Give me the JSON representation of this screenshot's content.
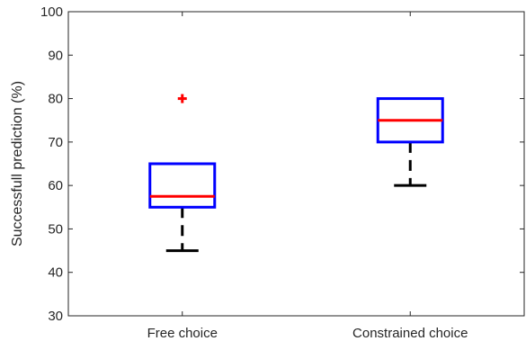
{
  "chart_data": {
    "type": "box",
    "ylabel": "Successfull prediction (%)",
    "xlabel": "",
    "ylim": [
      30,
      100
    ],
    "yticks": [
      30,
      40,
      50,
      60,
      70,
      80,
      90,
      100
    ],
    "grid": false,
    "categories": [
      "Free choice",
      "Constrained choice"
    ],
    "boxes": [
      {
        "category": "Free choice",
        "whisker_low": 45,
        "q1": 55,
        "median": 57.5,
        "q3": 65,
        "whisker_high": 65,
        "outliers": [
          80
        ]
      },
      {
        "category": "Constrained choice",
        "whisker_low": 60,
        "q1": 70,
        "median": 75,
        "q3": 80,
        "whisker_high": 80,
        "outliers": []
      }
    ],
    "colors": {
      "box": "#0000ff",
      "median": "#ff0000",
      "whisker": "#000000",
      "outlier": "#ff0000",
      "axis": "#262626"
    }
  }
}
